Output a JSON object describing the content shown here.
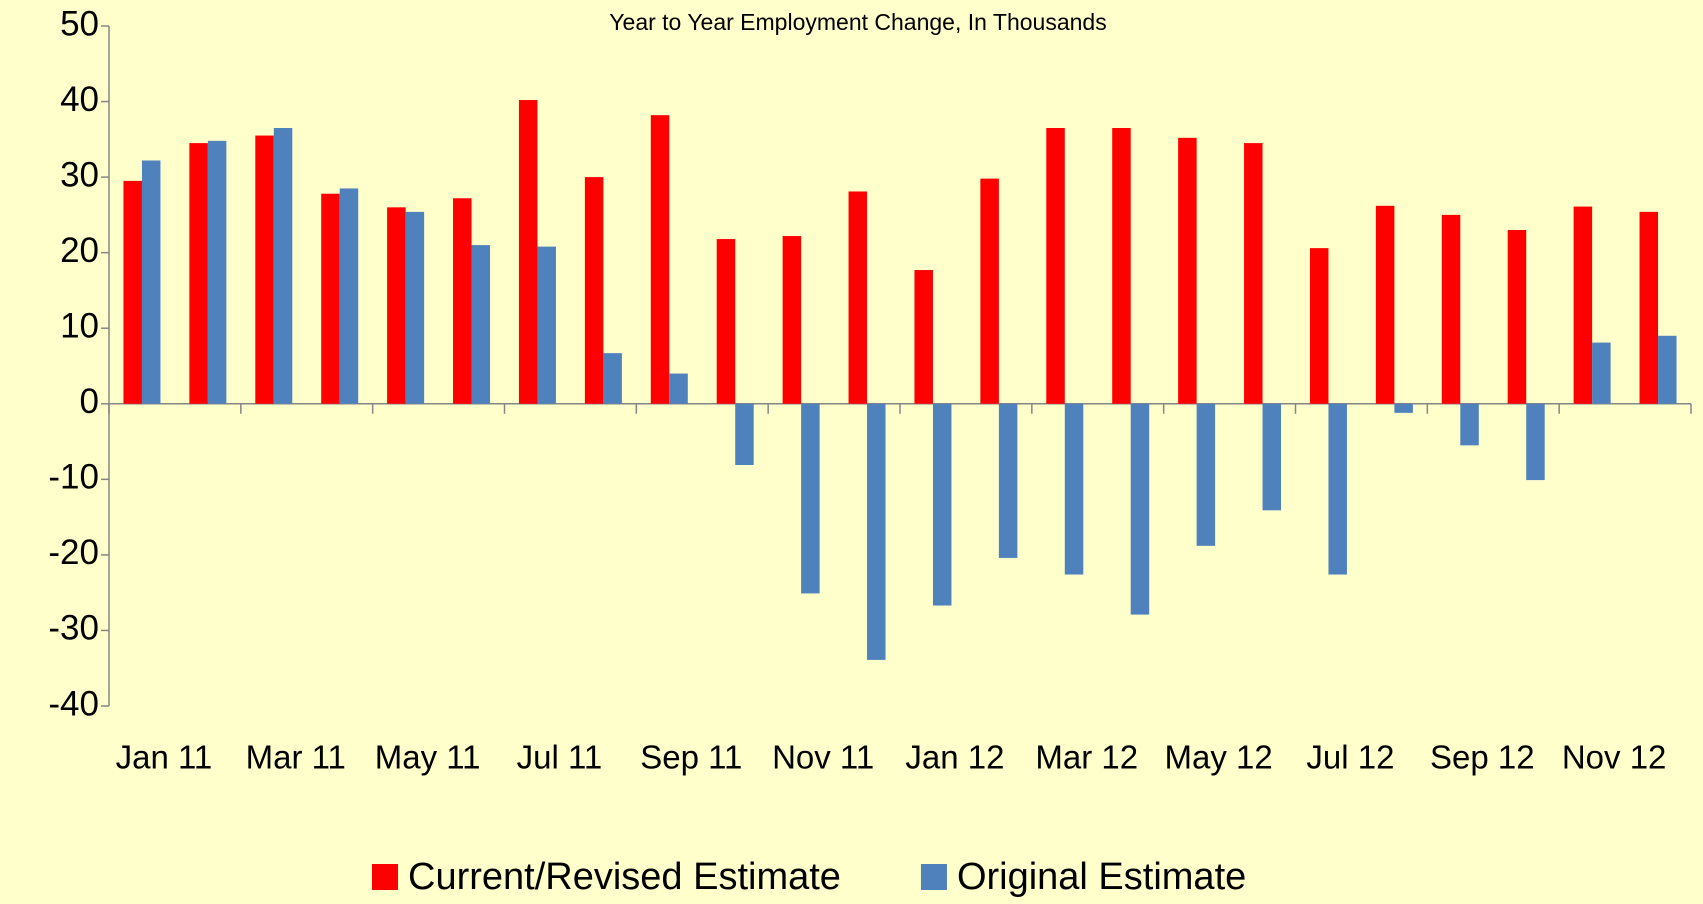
{
  "chart_data": {
    "type": "bar",
    "title": "Year to Year Employment Change, In Thousands",
    "categories": [
      "Jan 11",
      null,
      "Mar 11",
      null,
      "May 11",
      null,
      "Jul 11",
      null,
      "Sep 11",
      null,
      "Nov 11",
      null,
      "Jan 12",
      null,
      "Mar 12",
      null,
      "May 12",
      null,
      "Jul 12",
      null,
      "Sep 12",
      null,
      "Nov 12",
      null
    ],
    "series": [
      {
        "name": "Current/Revised Estimate",
        "color": "#ff0000",
        "values": [
          29.5,
          34.5,
          35.5,
          27.8,
          26,
          27.2,
          40.2,
          30,
          38.2,
          21.8,
          22.2,
          28.1,
          17.7,
          29.8,
          36.5,
          36.5,
          35.2,
          34.5,
          20.6,
          26.2,
          25,
          23,
          26.1,
          25.4
        ]
      },
      {
        "name": "Original Estimate",
        "color": "#4f81bd",
        "values": [
          32.2,
          34.8,
          36.5,
          28.5,
          25.4,
          21,
          20.8,
          6.7,
          4,
          -8.1,
          -25.1,
          -33.9,
          -26.7,
          -20.4,
          -22.6,
          -27.9,
          -18.8,
          -14.1,
          -22.6,
          -1.2,
          -5.5,
          -10.1,
          8.1,
          9
        ]
      }
    ],
    "ylim": [
      -40,
      50
    ],
    "yticks": [
      -40,
      -30,
      -20,
      -10,
      0,
      10,
      20,
      30,
      40,
      50
    ],
    "grid": false,
    "legend": "bottom"
  }
}
